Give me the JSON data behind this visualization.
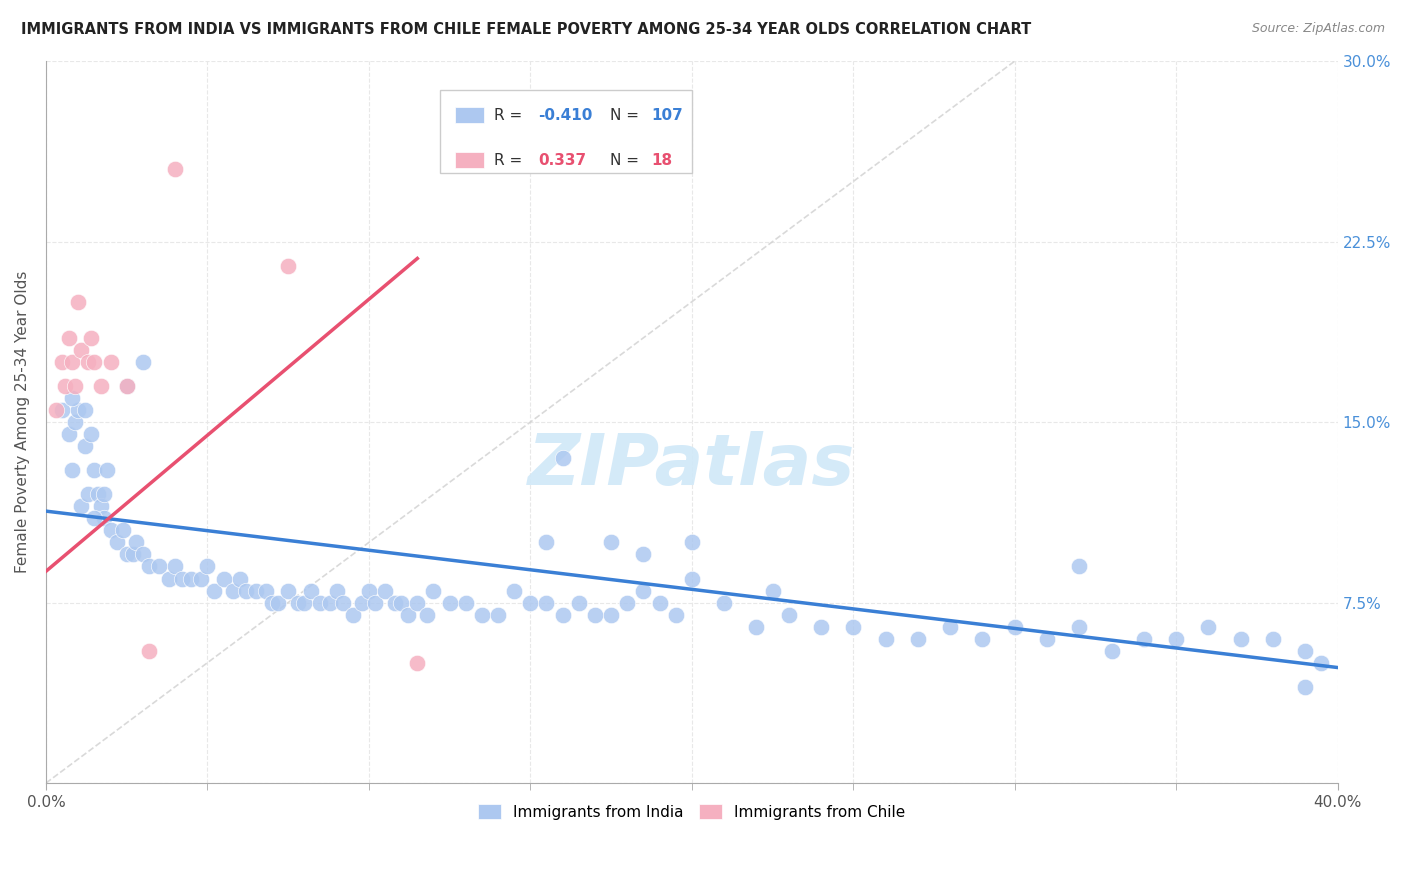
{
  "title": "IMMIGRANTS FROM INDIA VS IMMIGRANTS FROM CHILE FEMALE POVERTY AMONG 25-34 YEAR OLDS CORRELATION CHART",
  "source": "Source: ZipAtlas.com",
  "ylabel": "Female Poverty Among 25-34 Year Olds",
  "xlim": [
    0,
    0.4
  ],
  "ylim": [
    0,
    0.3
  ],
  "xtick_positions": [
    0.0,
    0.4
  ],
  "xtick_labels": [
    "0.0%",
    "40.0%"
  ],
  "yticks": [
    0.0,
    0.075,
    0.15,
    0.225,
    0.3
  ],
  "ytick_labels_right": [
    "",
    "7.5%",
    "15.0%",
    "22.5%",
    "30.0%"
  ],
  "india_R": -0.41,
  "india_N": 107,
  "chile_R": 0.337,
  "chile_N": 18,
  "india_color": "#adc8f0",
  "chile_color": "#f5b0c0",
  "india_line_color": "#3a7fd5",
  "chile_line_color": "#e85070",
  "ref_line_color": "#d0d0d0",
  "background_color": "#ffffff",
  "grid_color": "#e8e8e8",
  "india_scatter_x": [
    0.005,
    0.007,
    0.008,
    0.009,
    0.01,
    0.011,
    0.012,
    0.013,
    0.014,
    0.015,
    0.016,
    0.017,
    0.018,
    0.019,
    0.02,
    0.022,
    0.024,
    0.025,
    0.027,
    0.028,
    0.03,
    0.032,
    0.035,
    0.038,
    0.04,
    0.042,
    0.045,
    0.048,
    0.05,
    0.052,
    0.055,
    0.058,
    0.06,
    0.062,
    0.065,
    0.068,
    0.07,
    0.072,
    0.075,
    0.078,
    0.08,
    0.082,
    0.085,
    0.088,
    0.09,
    0.092,
    0.095,
    0.098,
    0.1,
    0.102,
    0.105,
    0.108,
    0.11,
    0.112,
    0.115,
    0.118,
    0.12,
    0.125,
    0.13,
    0.135,
    0.14,
    0.145,
    0.15,
    0.155,
    0.16,
    0.165,
    0.17,
    0.175,
    0.18,
    0.185,
    0.19,
    0.195,
    0.2,
    0.21,
    0.22,
    0.23,
    0.24,
    0.25,
    0.26,
    0.27,
    0.28,
    0.29,
    0.3,
    0.31,
    0.32,
    0.33,
    0.34,
    0.35,
    0.36,
    0.37,
    0.38,
    0.39,
    0.395,
    0.025,
    0.03,
    0.008,
    0.012,
    0.16,
    0.32,
    0.39,
    0.015,
    0.018,
    0.2,
    0.185,
    0.175,
    0.155,
    0.225
  ],
  "india_scatter_y": [
    0.155,
    0.145,
    0.13,
    0.15,
    0.155,
    0.115,
    0.14,
    0.12,
    0.145,
    0.13,
    0.12,
    0.115,
    0.11,
    0.13,
    0.105,
    0.1,
    0.105,
    0.095,
    0.095,
    0.1,
    0.095,
    0.09,
    0.09,
    0.085,
    0.09,
    0.085,
    0.085,
    0.085,
    0.09,
    0.08,
    0.085,
    0.08,
    0.085,
    0.08,
    0.08,
    0.08,
    0.075,
    0.075,
    0.08,
    0.075,
    0.075,
    0.08,
    0.075,
    0.075,
    0.08,
    0.075,
    0.07,
    0.075,
    0.08,
    0.075,
    0.08,
    0.075,
    0.075,
    0.07,
    0.075,
    0.07,
    0.08,
    0.075,
    0.075,
    0.07,
    0.07,
    0.08,
    0.075,
    0.075,
    0.07,
    0.075,
    0.07,
    0.07,
    0.075,
    0.08,
    0.075,
    0.07,
    0.085,
    0.075,
    0.065,
    0.07,
    0.065,
    0.065,
    0.06,
    0.06,
    0.065,
    0.06,
    0.065,
    0.06,
    0.065,
    0.055,
    0.06,
    0.06,
    0.065,
    0.06,
    0.06,
    0.055,
    0.05,
    0.165,
    0.175,
    0.16,
    0.155,
    0.135,
    0.09,
    0.04,
    0.11,
    0.12,
    0.1,
    0.095,
    0.1,
    0.1,
    0.08
  ],
  "chile_scatter_x": [
    0.003,
    0.005,
    0.006,
    0.007,
    0.008,
    0.009,
    0.01,
    0.011,
    0.013,
    0.014,
    0.015,
    0.017,
    0.02,
    0.025,
    0.032,
    0.04,
    0.075,
    0.115
  ],
  "chile_scatter_y": [
    0.155,
    0.175,
    0.165,
    0.185,
    0.175,
    0.165,
    0.2,
    0.18,
    0.175,
    0.185,
    0.175,
    0.165,
    0.175,
    0.165,
    0.055,
    0.255,
    0.215,
    0.05
  ],
  "india_trend_x": [
    0.0,
    0.4
  ],
  "india_trend_y": [
    0.113,
    0.048
  ],
  "chile_trend_x": [
    0.0,
    0.115
  ],
  "chile_trend_y": [
    0.088,
    0.218
  ],
  "ref_line_x": [
    0.0,
    0.3
  ],
  "ref_line_y": [
    0.0,
    0.3
  ],
  "watermark_text": "ZIPatlas",
  "watermark_color": "#d0e8f8",
  "legend_title_india": "R = -0.410   N = 107",
  "legend_title_chile": "R =  0.337   N =  18",
  "bottom_legend_labels": [
    "Immigrants from India",
    "Immigrants from Chile"
  ]
}
